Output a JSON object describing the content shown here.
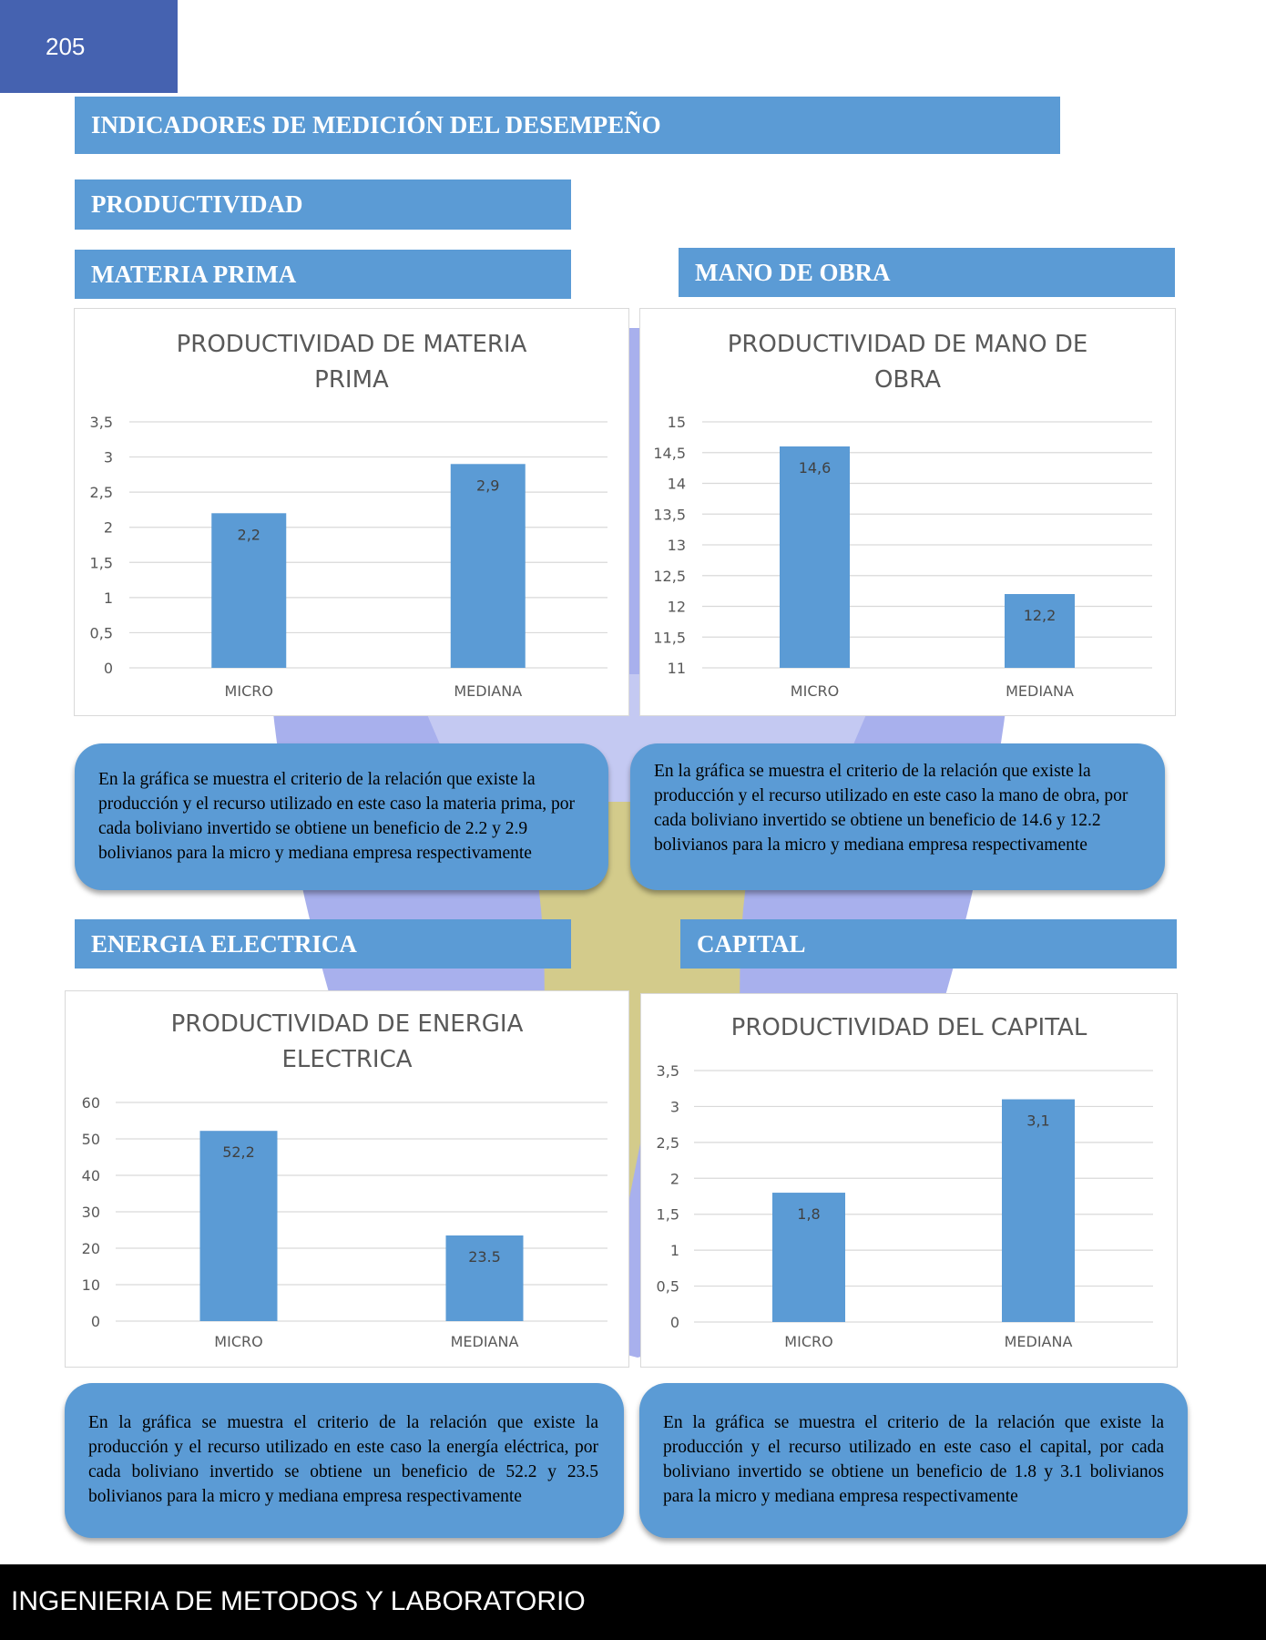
{
  "page": {
    "number": "205"
  },
  "headers": {
    "main": "INDICADORES DE MEDICIÓN DEL DESEMPEÑO",
    "section": "PRODUCTIVIDAD",
    "materia_prima": "MATERIA PRIMA",
    "mano_obra": "MANO DE OBRA",
    "energia": "ENERGIA ELECTRICA",
    "capital": "CAPITAL"
  },
  "chart_data": [
    {
      "id": "c1",
      "type": "bar",
      "title_line1": "PRODUCTIVIDAD DE MATERIA",
      "title_line2": "PRIMA",
      "categories": [
        "MICRO",
        "MEDIANA"
      ],
      "values": [
        2.2,
        2.9
      ],
      "value_labels": [
        "2,2",
        "2,9"
      ],
      "ylim": [
        0,
        3.5
      ],
      "ticks": [
        "0",
        "0,5",
        "1",
        "1,5",
        "2",
        "2,5",
        "3",
        "3,5"
      ],
      "tick_values": [
        0,
        0.5,
        1,
        1.5,
        2,
        2.5,
        3,
        3.5
      ],
      "color": "#5b9bd5",
      "grid": true
    },
    {
      "id": "c2",
      "type": "bar",
      "title_line1": "PRODUCTIVIDAD DE MANO DE",
      "title_line2": "OBRA",
      "categories": [
        "MICRO",
        "MEDIANA"
      ],
      "values": [
        14.6,
        12.2
      ],
      "value_labels": [
        "14,6",
        "12,2"
      ],
      "ylim": [
        11,
        15
      ],
      "ticks": [
        "11",
        "11,5",
        "12",
        "12,5",
        "13",
        "13,5",
        "14",
        "14,5",
        "15"
      ],
      "tick_values": [
        11,
        11.5,
        12,
        12.5,
        13,
        13.5,
        14,
        14.5,
        15
      ],
      "color": "#5b9bd5",
      "grid": true
    },
    {
      "id": "c3",
      "type": "bar",
      "title_line1": "PRODUCTIVIDAD DE ENERGIA",
      "title_line2": "ELECTRICA",
      "categories": [
        "MICRO",
        "MEDIANA"
      ],
      "values": [
        52.2,
        23.5
      ],
      "value_labels": [
        "52,2",
        "23.5"
      ],
      "ylim": [
        0,
        60
      ],
      "ticks": [
        "0",
        "10",
        "20",
        "30",
        "40",
        "50",
        "60"
      ],
      "tick_values": [
        0,
        10,
        20,
        30,
        40,
        50,
        60
      ],
      "color": "#5b9bd5",
      "grid": true
    },
    {
      "id": "c4",
      "type": "bar",
      "title_line1": "PRODUCTIVIDAD DEL CAPITAL",
      "title_line2": "",
      "categories": [
        "MICRO",
        "MEDIANA"
      ],
      "values": [
        1.8,
        3.1
      ],
      "value_labels": [
        "1,8",
        "3,1"
      ],
      "ylim": [
        0,
        3.5
      ],
      "ticks": [
        "0",
        "0,5",
        "1",
        "1,5",
        "2",
        "2,5",
        "3",
        "3,5"
      ],
      "tick_values": [
        0,
        0.5,
        1,
        1.5,
        2,
        2.5,
        3,
        3.5
      ],
      "color": "#5b9bd5",
      "grid": true
    }
  ],
  "descriptions": {
    "materia_prima": "En la gráfica se muestra el criterio de la relación que existe la producción y el recurso utilizado en este caso la materia prima, por cada boliviano invertido se obtiene un beneficio de 2.2 y 2.9 bolivianos para la micro y mediana empresa respectivamente",
    "mano_obra": "En la gráfica se muestra el criterio de la relación que existe la producción y el recurso utilizado en este caso la mano de obra, por cada boliviano invertido se obtiene un beneficio de 14.6 y 12.2 bolivianos para la micro y mediana empresa respectivamente",
    "energia": "En la gráfica se muestra el criterio de la relación que existe la producción y el recurso utilizado en este caso la energía eléctrica, por cada boliviano invertido se obtiene un beneficio de 52.2 y 23.5 bolivianos para la micro y mediana empresa respectivamente",
    "capital": "En la gráfica se muestra el criterio de la relación que existe la producción y el recurso utilizado en este caso el capital, por cada boliviano invertido se obtiene un beneficio de 1.8 y 3.1 bolivianos para la micro y mediana empresa respectivamente"
  },
  "footer": {
    "text": "INGENIERIA DE METODOS Y LABORATORIO"
  }
}
